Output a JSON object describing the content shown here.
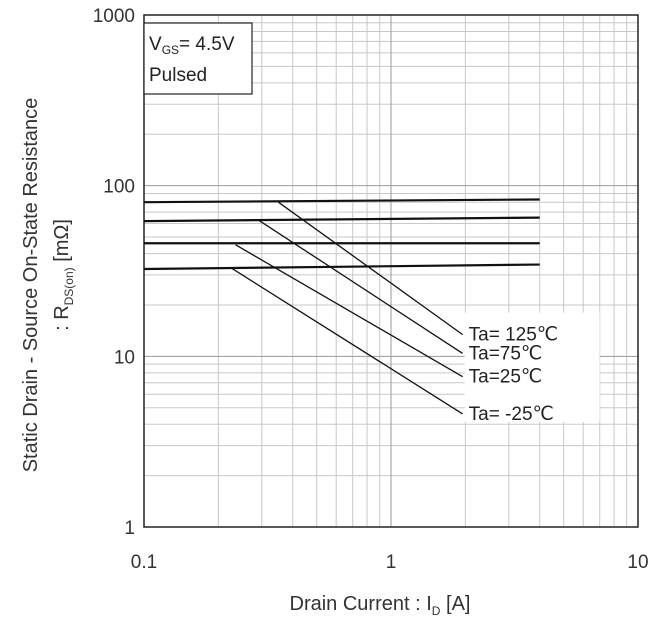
{
  "chart_data": {
    "type": "line",
    "title": "",
    "x_scale": "log",
    "y_scale": "log",
    "xlim": [
      0.1,
      10
    ],
    "ylim": [
      1,
      1000
    ],
    "grid": true,
    "xticks": [
      "0.1",
      "1",
      "10"
    ],
    "yticks": [
      "1",
      "10",
      "100",
      "1000"
    ],
    "xlabel": {
      "main": "Drain Current : I",
      "sub": "D",
      "unit": " [A]"
    },
    "ylabel": {
      "line1": "Static Drain - Source On-State Resistance",
      "line2_prefix": ": R",
      "line2_sub": "DS(on)",
      "line2_unit": " [mΩ]"
    },
    "conditions": {
      "vgs_label": "V",
      "vgs_sub": "GS",
      "vgs_value": "= 4.5V",
      "mode": "Pulsed"
    },
    "series": [
      {
        "name": "Ta= 125℃",
        "x": [
          0.1,
          4.0
        ],
        "y": [
          80,
          83
        ]
      },
      {
        "name": "Ta=75℃",
        "x": [
          0.1,
          4.0
        ],
        "y": [
          62,
          65
        ]
      },
      {
        "name": "Ta=25℃",
        "x": [
          0.1,
          4.0
        ],
        "y": [
          46,
          46
        ]
      },
      {
        "name": "Ta= -25℃",
        "x": [
          0.1,
          4.0
        ],
        "y": [
          32.5,
          34.5
        ]
      }
    ],
    "callout_lines": [
      {
        "label": "Ta= 125℃",
        "x": [
          0.35,
          1.95
        ],
        "y": [
          80,
          13.4
        ]
      },
      {
        "label": "Ta=75℃",
        "x": [
          0.29,
          1.95
        ],
        "y": [
          63,
          10.4
        ]
      },
      {
        "label": "Ta=25℃",
        "x": [
          0.235,
          1.95
        ],
        "y": [
          45,
          7.6
        ]
      },
      {
        "label": "Ta= -25℃",
        "x": [
          0.225,
          1.95
        ],
        "y": [
          33,
          4.6
        ]
      }
    ]
  }
}
